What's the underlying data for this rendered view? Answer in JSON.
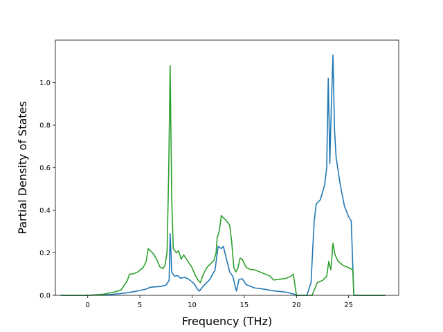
{
  "chart_data": {
    "type": "line",
    "title": "",
    "xlabel": "Frequency (THz)",
    "ylabel": "Partial Density of States",
    "xlim": [
      -3.1,
      29.8
    ],
    "ylim": [
      0.0,
      1.2
    ],
    "x_ticks": [
      0,
      5,
      10,
      15,
      20,
      25
    ],
    "x_tick_labels": [
      "0",
      "5",
      "10",
      "15",
      "20",
      "25"
    ],
    "y_ticks": [
      0.0,
      0.2,
      0.4,
      0.6,
      0.8,
      1.0
    ],
    "y_tick_labels": [
      "0.0",
      "0.2",
      "0.4",
      "0.6",
      "0.8",
      "1.0"
    ],
    "grid": false,
    "legend": "none",
    "series": [
      {
        "color": "#1f77b4",
        "points": [
          [
            -2.6,
            0.0
          ],
          [
            0.0,
            0.0
          ],
          [
            2.0,
            0.003
          ],
          [
            3.5,
            0.01
          ],
          [
            4.5,
            0.018
          ],
          [
            5.5,
            0.028
          ],
          [
            6.0,
            0.038
          ],
          [
            7.0,
            0.042
          ],
          [
            7.5,
            0.048
          ],
          [
            7.8,
            0.07
          ],
          [
            7.9,
            0.29
          ],
          [
            8.05,
            0.11
          ],
          [
            8.3,
            0.09
          ],
          [
            8.6,
            0.093
          ],
          [
            8.9,
            0.08
          ],
          [
            9.3,
            0.085
          ],
          [
            9.7,
            0.075
          ],
          [
            10.2,
            0.055
          ],
          [
            10.5,
            0.03
          ],
          [
            10.7,
            0.02
          ],
          [
            11.1,
            0.045
          ],
          [
            11.7,
            0.075
          ],
          [
            12.2,
            0.12
          ],
          [
            12.5,
            0.23
          ],
          [
            12.8,
            0.22
          ],
          [
            13.0,
            0.23
          ],
          [
            13.3,
            0.17
          ],
          [
            13.6,
            0.11
          ],
          [
            13.9,
            0.09
          ],
          [
            14.1,
            0.05
          ],
          [
            14.25,
            0.02
          ],
          [
            14.5,
            0.075
          ],
          [
            14.8,
            0.078
          ],
          [
            15.2,
            0.05
          ],
          [
            16.0,
            0.035
          ],
          [
            17.0,
            0.028
          ],
          [
            18.0,
            0.02
          ],
          [
            19.0,
            0.015
          ],
          [
            19.8,
            0.005
          ],
          [
            20.0,
            0.0
          ],
          [
            21.0,
            0.0
          ],
          [
            21.4,
            0.06
          ],
          [
            21.7,
            0.35
          ],
          [
            21.9,
            0.43
          ],
          [
            22.3,
            0.45
          ],
          [
            22.7,
            0.52
          ],
          [
            22.9,
            0.6
          ],
          [
            23.05,
            1.02
          ],
          [
            23.2,
            0.62
          ],
          [
            23.35,
            0.9
          ],
          [
            23.5,
            1.13
          ],
          [
            23.65,
            0.78
          ],
          [
            23.8,
            0.65
          ],
          [
            24.2,
            0.52
          ],
          [
            24.6,
            0.42
          ],
          [
            25.0,
            0.37
          ],
          [
            25.25,
            0.35
          ],
          [
            25.5,
            0.0
          ],
          [
            28.5,
            0.0
          ]
        ]
      },
      {
        "color": "#2ca02c",
        "points": [
          [
            -2.6,
            0.0
          ],
          [
            0.0,
            0.0
          ],
          [
            1.5,
            0.005
          ],
          [
            2.5,
            0.015
          ],
          [
            3.2,
            0.025
          ],
          [
            3.8,
            0.07
          ],
          [
            4.0,
            0.1
          ],
          [
            4.3,
            0.1
          ],
          [
            4.8,
            0.11
          ],
          [
            5.3,
            0.13
          ],
          [
            5.6,
            0.16
          ],
          [
            5.8,
            0.22
          ],
          [
            6.3,
            0.195
          ],
          [
            6.6,
            0.17
          ],
          [
            6.9,
            0.135
          ],
          [
            7.2,
            0.125
          ],
          [
            7.4,
            0.14
          ],
          [
            7.6,
            0.2
          ],
          [
            7.75,
            0.55
          ],
          [
            7.9,
            1.08
          ],
          [
            8.05,
            0.45
          ],
          [
            8.2,
            0.22
          ],
          [
            8.5,
            0.2
          ],
          [
            8.7,
            0.21
          ],
          [
            8.95,
            0.17
          ],
          [
            9.2,
            0.19
          ],
          [
            9.6,
            0.16
          ],
          [
            10.0,
            0.13
          ],
          [
            10.3,
            0.095
          ],
          [
            10.6,
            0.07
          ],
          [
            10.8,
            0.06
          ],
          [
            11.0,
            0.09
          ],
          [
            11.4,
            0.13
          ],
          [
            11.8,
            0.15
          ],
          [
            12.1,
            0.165
          ],
          [
            12.3,
            0.2
          ],
          [
            12.4,
            0.27
          ],
          [
            12.6,
            0.3
          ],
          [
            12.8,
            0.375
          ],
          [
            13.3,
            0.35
          ],
          [
            13.6,
            0.33
          ],
          [
            13.8,
            0.25
          ],
          [
            14.0,
            0.13
          ],
          [
            14.2,
            0.11
          ],
          [
            14.4,
            0.13
          ],
          [
            14.6,
            0.175
          ],
          [
            14.8,
            0.17
          ],
          [
            15.2,
            0.13
          ],
          [
            15.7,
            0.12
          ],
          [
            16.0,
            0.12
          ],
          [
            16.5,
            0.11
          ],
          [
            17.0,
            0.1
          ],
          [
            17.5,
            0.09
          ],
          [
            17.8,
            0.072
          ],
          [
            18.3,
            0.075
          ],
          [
            19.0,
            0.08
          ],
          [
            19.5,
            0.09
          ],
          [
            19.7,
            0.1
          ],
          [
            20.0,
            0.0
          ],
          [
            21.5,
            0.0
          ],
          [
            22.0,
            0.06
          ],
          [
            22.5,
            0.07
          ],
          [
            22.9,
            0.09
          ],
          [
            23.1,
            0.16
          ],
          [
            23.3,
            0.12
          ],
          [
            23.5,
            0.245
          ],
          [
            23.7,
            0.19
          ],
          [
            24.0,
            0.16
          ],
          [
            24.5,
            0.14
          ],
          [
            25.0,
            0.13
          ],
          [
            25.4,
            0.12
          ],
          [
            25.5,
            0.0
          ],
          [
            28.5,
            0.0
          ]
        ]
      }
    ]
  }
}
